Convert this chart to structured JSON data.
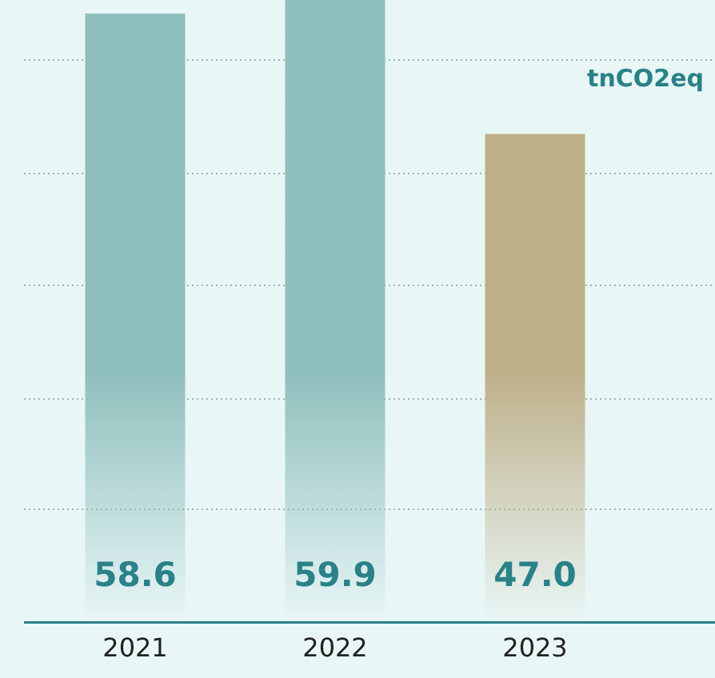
{
  "chart_data": {
    "type": "bar",
    "categories": [
      "2021",
      "2022",
      "2023"
    ],
    "values": [
      58.6,
      59.9,
      47.0
    ],
    "value_labels": [
      "58.6",
      "59.9",
      "47.0"
    ],
    "colors": [
      "#8fbfbd",
      "#8fbfbd",
      "#bfb08a"
    ],
    "yticks": [
      {
        "value": 10.9,
        "label": null
      },
      {
        "value": 21.6,
        "label": null
      },
      {
        "value": 32.4,
        "label": null
      },
      {
        "value": 43.3,
        "label": null
      },
      {
        "value": 54.2,
        "label": null
      }
    ],
    "grid": "y",
    "tick_labels": "x",
    "legend": false,
    "annotations": [
      "tnCO2eq"
    ]
  }
}
